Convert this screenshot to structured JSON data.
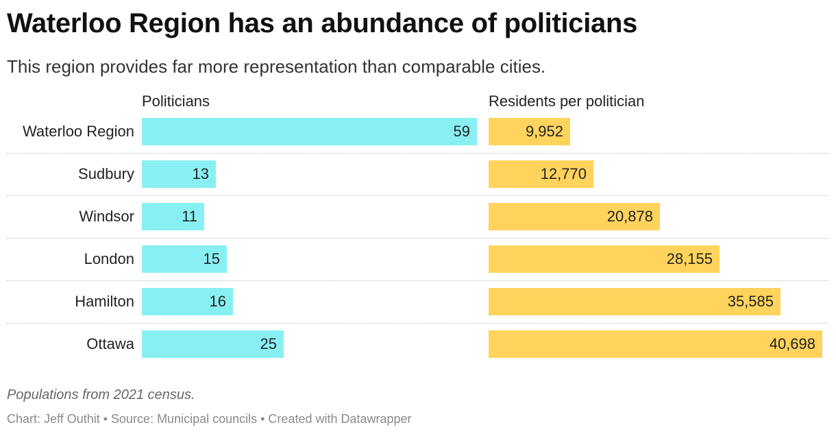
{
  "title": "Waterloo Region has an abundance of politicians",
  "subtitle": "This region provides far more representation than comparable cities.",
  "note": "Populations from 2021 census.",
  "credit": "Chart: Jeff Outhit • Source: Municipal councils • Created with Datawrapper",
  "colors": {
    "politicians": "#88f0f2",
    "residents": "#ffd35c"
  },
  "chart_data": {
    "type": "bar",
    "orientation": "horizontal",
    "categories": [
      "Waterloo Region",
      "Sudbury",
      "Windsor",
      "London",
      "Hamilton",
      "Ottawa"
    ],
    "series": [
      {
        "name": "Politicians",
        "values": [
          59,
          13,
          11,
          15,
          16,
          25
        ],
        "labels": [
          "59",
          "13",
          "11",
          "15",
          "16",
          "25"
        ],
        "xlim": [
          0,
          59
        ]
      },
      {
        "name": "Residents per politician",
        "values": [
          9952,
          12770,
          20878,
          28155,
          35585,
          40698
        ],
        "labels": [
          "9,952",
          "12,770",
          "20,878",
          "28,155",
          "35,585",
          "40,698"
        ],
        "xlim": [
          0,
          40698
        ]
      }
    ]
  }
}
